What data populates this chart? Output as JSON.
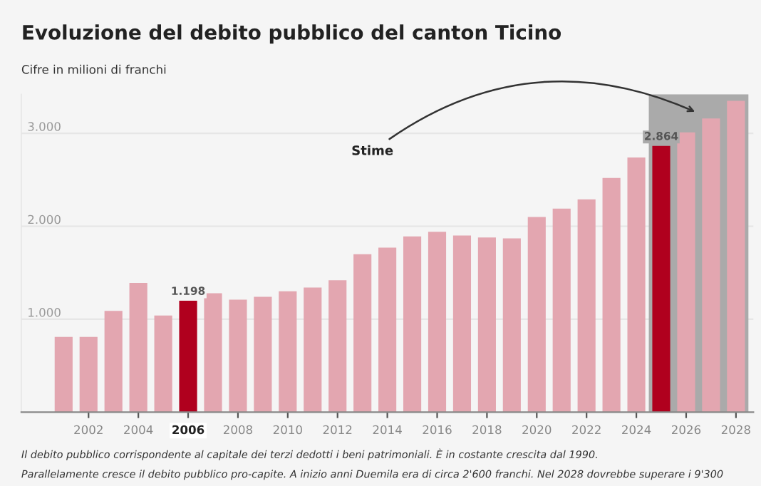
{
  "chart_data": {
    "type": "bar",
    "title": "Evoluzione del debito pubblico del canton Ticino",
    "subtitle": "Cifre in milioni di franchi",
    "x": [
      2001,
      2002,
      2003,
      2004,
      2005,
      2006,
      2007,
      2008,
      2009,
      2010,
      2011,
      2012,
      2013,
      2014,
      2015,
      2016,
      2017,
      2018,
      2019,
      2020,
      2021,
      2022,
      2023,
      2024,
      2025,
      2026,
      2027,
      2028
    ],
    "values": [
      810,
      810,
      1090,
      1390,
      1040,
      1198,
      1280,
      1210,
      1240,
      1300,
      1340,
      1420,
      1700,
      1770,
      1890,
      1940,
      1900,
      1880,
      1870,
      2100,
      2190,
      2290,
      2520,
      2740,
      2864,
      3010,
      3160,
      3350
    ],
    "colors": [
      "#e3a6b0",
      "#e3a6b0",
      "#e3a6b0",
      "#e3a6b0",
      "#e3a6b0",
      "#b0001e",
      "#e3a6b0",
      "#e3a6b0",
      "#e3a6b0",
      "#e3a6b0",
      "#e3a6b0",
      "#e3a6b0",
      "#e3a6b0",
      "#e3a6b0",
      "#e3a6b0",
      "#e3a6b0",
      "#e3a6b0",
      "#e3a6b0",
      "#e3a6b0",
      "#e3a6b0",
      "#e3a6b0",
      "#e3a6b0",
      "#e3a6b0",
      "#e3a6b0",
      "#b0001e",
      "#e3a6b0",
      "#e3a6b0",
      "#e3a6b0"
    ],
    "value_labels": [
      null,
      null,
      null,
      null,
      null,
      "1.198",
      null,
      null,
      null,
      null,
      null,
      null,
      null,
      null,
      null,
      null,
      null,
      null,
      null,
      null,
      null,
      null,
      null,
      null,
      "2.864",
      null,
      null,
      null
    ],
    "xlim": [
      1999.3,
      2028.7
    ],
    "xticks": [
      2002,
      2004,
      2006,
      2008,
      2010,
      2012,
      2014,
      2016,
      2018,
      2020,
      2022,
      2024,
      2026,
      2028
    ],
    "ylim": [
      0,
      3420
    ],
    "yticks": [
      {
        "value": 1000,
        "label": "1.000"
      },
      {
        "value": 2000,
        "label": "2.000"
      },
      {
        "value": 3000,
        "label": "3.000"
      }
    ],
    "grid": "y",
    "bands": [
      {
        "axis": "x",
        "from": 2024.5,
        "to": 2028.5,
        "label": "Stime",
        "color": "#aaaaaa"
      }
    ],
    "annotations": [
      "Il debito pubblico corrispondente al capitale dei terzi dedotti i beni patrimoniali. È in costante crescita dal 1990.",
      "Parallelamente cresce il debito pubblico pro-capite. A inizio anni Duemila era di circa 2'600 franchi. Nel 2028 dovrebbe superare i 9'300"
    ]
  }
}
